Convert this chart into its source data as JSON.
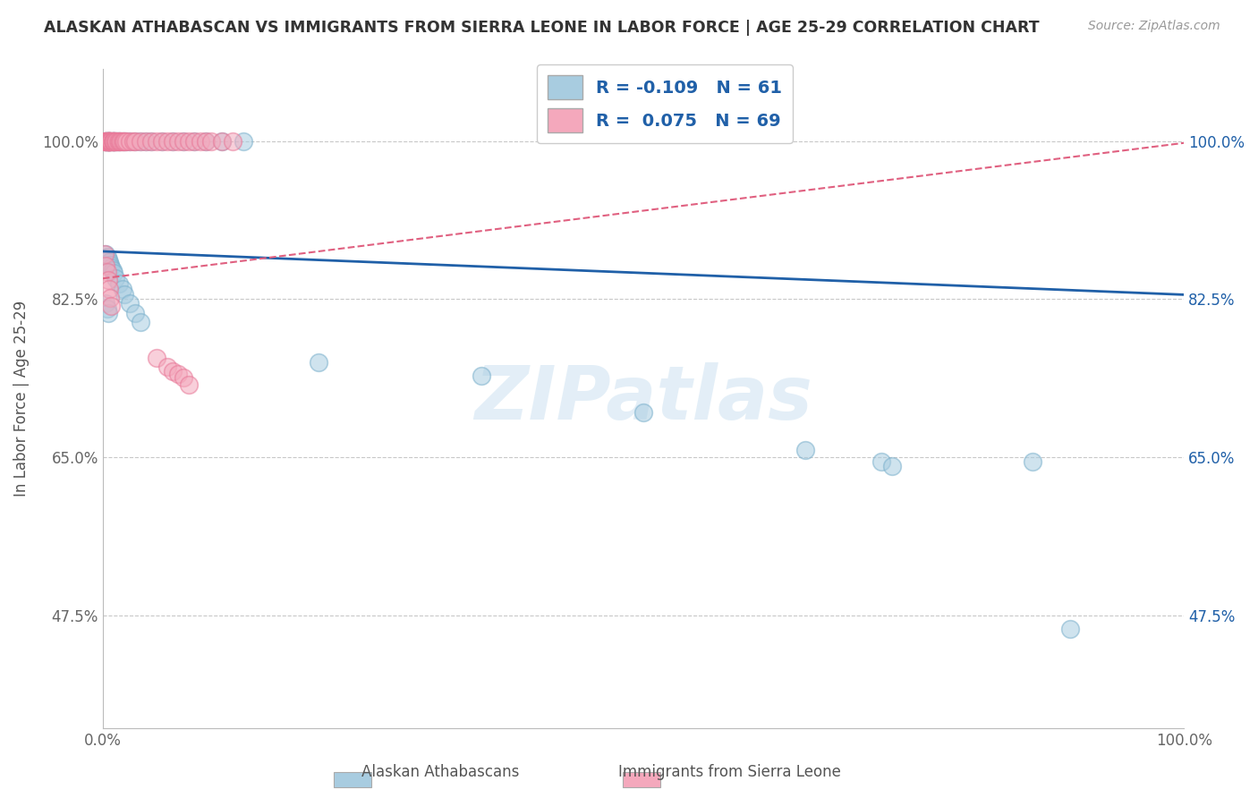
{
  "title": "ALASKAN ATHABASCAN VS IMMIGRANTS FROM SIERRA LEONE IN LABOR FORCE | AGE 25-29 CORRELATION CHART",
  "source": "Source: ZipAtlas.com",
  "ylabel": "In Labor Force | Age 25-29",
  "xlim": [
    0.0,
    1.0
  ],
  "ylim": [
    0.35,
    1.08
  ],
  "yticks": [
    0.475,
    0.65,
    0.825,
    1.0
  ],
  "ytick_labels": [
    "47.5%",
    "65.0%",
    "82.5%",
    "100.0%"
  ],
  "legend_blue_r": "-0.109",
  "legend_blue_n": "61",
  "legend_pink_r": "0.075",
  "legend_pink_n": "69",
  "blue_color": "#a8cce0",
  "pink_color": "#f4a8bc",
  "blue_edge_color": "#7ab0cc",
  "pink_edge_color": "#e87898",
  "blue_line_color": "#2060a8",
  "pink_line_color": "#e06080",
  "background_color": "#ffffff",
  "watermark": "ZIPatlas",
  "blue_line_x0": 0.0,
  "blue_line_y0": 0.878,
  "blue_line_x1": 1.0,
  "blue_line_y1": 0.83,
  "pink_line_x0": 0.0,
  "pink_line_y0": 0.848,
  "pink_line_x1": 1.0,
  "pink_line_y1": 0.998,
  "blue_scatter_x": [
    0.003,
    0.003,
    0.003,
    0.004,
    0.004,
    0.005,
    0.005,
    0.006,
    0.006,
    0.007,
    0.008,
    0.009,
    0.01,
    0.01,
    0.01,
    0.012,
    0.013,
    0.014,
    0.015,
    0.016,
    0.018,
    0.02,
    0.022,
    0.025,
    0.03,
    0.035,
    0.04,
    0.045,
    0.055,
    0.065,
    0.075,
    0.085,
    0.095,
    0.11,
    0.13,
    0.003,
    0.004,
    0.005,
    0.006,
    0.007,
    0.008,
    0.009,
    0.01,
    0.012,
    0.015,
    0.018,
    0.02,
    0.025,
    0.03,
    0.035,
    0.003,
    0.004,
    0.005,
    0.2,
    0.35,
    0.5,
    0.65,
    0.72,
    0.73,
    0.86,
    0.895
  ],
  "blue_scatter_y": [
    1.0,
    1.0,
    1.0,
    1.0,
    1.0,
    1.0,
    1.0,
    1.0,
    1.0,
    1.0,
    1.0,
    1.0,
    1.0,
    1.0,
    1.0,
    1.0,
    1.0,
    1.0,
    1.0,
    1.0,
    1.0,
    1.0,
    1.0,
    1.0,
    1.0,
    1.0,
    1.0,
    1.0,
    1.0,
    1.0,
    1.0,
    1.0,
    1.0,
    1.0,
    1.0,
    0.875,
    0.872,
    0.869,
    0.866,
    0.863,
    0.86,
    0.857,
    0.854,
    0.848,
    0.842,
    0.836,
    0.83,
    0.82,
    0.81,
    0.8,
    0.82,
    0.815,
    0.81,
    0.755,
    0.74,
    0.7,
    0.658,
    0.645,
    0.64,
    0.645,
    0.46
  ],
  "pink_scatter_x": [
    0.002,
    0.002,
    0.003,
    0.003,
    0.003,
    0.004,
    0.004,
    0.004,
    0.005,
    0.005,
    0.005,
    0.005,
    0.006,
    0.006,
    0.006,
    0.007,
    0.007,
    0.007,
    0.008,
    0.008,
    0.009,
    0.009,
    0.01,
    0.01,
    0.01,
    0.01,
    0.012,
    0.012,
    0.013,
    0.014,
    0.015,
    0.016,
    0.017,
    0.018,
    0.019,
    0.02,
    0.022,
    0.025,
    0.028,
    0.03,
    0.035,
    0.04,
    0.045,
    0.05,
    0.055,
    0.06,
    0.065,
    0.07,
    0.075,
    0.08,
    0.085,
    0.09,
    0.095,
    0.1,
    0.11,
    0.12,
    0.002,
    0.003,
    0.004,
    0.005,
    0.006,
    0.007,
    0.008,
    0.05,
    0.06,
    0.065,
    0.07,
    0.075,
    0.08
  ],
  "pink_scatter_y": [
    1.0,
    1.0,
    1.0,
    1.0,
    1.0,
    1.0,
    1.0,
    1.0,
    1.0,
    1.0,
    1.0,
    1.0,
    1.0,
    1.0,
    1.0,
    1.0,
    1.0,
    1.0,
    1.0,
    1.0,
    1.0,
    1.0,
    1.0,
    1.0,
    1.0,
    1.0,
    1.0,
    1.0,
    1.0,
    1.0,
    1.0,
    1.0,
    1.0,
    1.0,
    1.0,
    1.0,
    1.0,
    1.0,
    1.0,
    1.0,
    1.0,
    1.0,
    1.0,
    1.0,
    1.0,
    1.0,
    1.0,
    1.0,
    1.0,
    1.0,
    1.0,
    1.0,
    1.0,
    1.0,
    1.0,
    1.0,
    0.875,
    0.862,
    0.855,
    0.846,
    0.836,
    0.826,
    0.818,
    0.76,
    0.75,
    0.745,
    0.742,
    0.738,
    0.73
  ]
}
